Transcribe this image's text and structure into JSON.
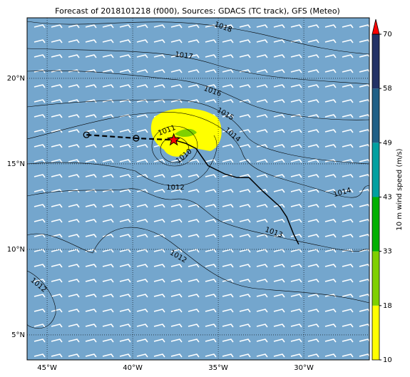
{
  "title": "Forecast of 2018101218 (f000), Sources: GDACS (TC track), GFS (Meteo)",
  "map": {
    "lon_range": [
      -46.17,
      -26.17
    ],
    "lat_range": [
      3.54,
      23.54
    ],
    "lon_ticks": [
      {
        "value": -45,
        "label": "45°W"
      },
      {
        "value": -40,
        "label": "40°W"
      },
      {
        "value": -35,
        "label": "35°W"
      },
      {
        "value": -30,
        "label": "30°W"
      }
    ],
    "lat_ticks": [
      {
        "value": 5,
        "label": "5°N"
      },
      {
        "value": 10,
        "label": "10°N"
      },
      {
        "value": 15,
        "label": "15°N"
      },
      {
        "value": 20,
        "label": "20°N"
      }
    ],
    "ocean_color": "#74a6cd"
  },
  "track": {
    "past": [
      [
        -42.7,
        16.7
      ],
      [
        -39.8,
        16.5
      ],
      [
        -37.6,
        16.4
      ]
    ],
    "forecast": [
      [
        -37.6,
        16.4
      ],
      [
        -36.9,
        16.2
      ],
      [
        -36.3,
        15.9
      ],
      [
        -35.6,
        14.9
      ],
      [
        -34.6,
        14.4
      ],
      [
        -33.9,
        14.2
      ],
      [
        -33.2,
        14.2
      ],
      [
        -32.4,
        13.4
      ],
      [
        -31.4,
        12.5
      ],
      [
        -31.0,
        11.9
      ],
      [
        -30.6,
        10.9
      ],
      [
        -30.3,
        10.3
      ]
    ],
    "position": [
      -37.6,
      16.4
    ]
  },
  "contour_labels": [
    "1018",
    "1017",
    "1016",
    "1015",
    "1014",
    "1011",
    "1010",
    "1012",
    "1014",
    "1013",
    "1012",
    "1012"
  ],
  "colorbar": {
    "label": "10 m wind speed (m/s)",
    "ticks": [
      10,
      18,
      33,
      43,
      49,
      58,
      70
    ],
    "colors": [
      "#ffff00",
      "#80d000",
      "#00b000",
      "#00a0a0",
      "#1f5f86",
      "#233265"
    ],
    "extend_color": "#ff0000"
  }
}
